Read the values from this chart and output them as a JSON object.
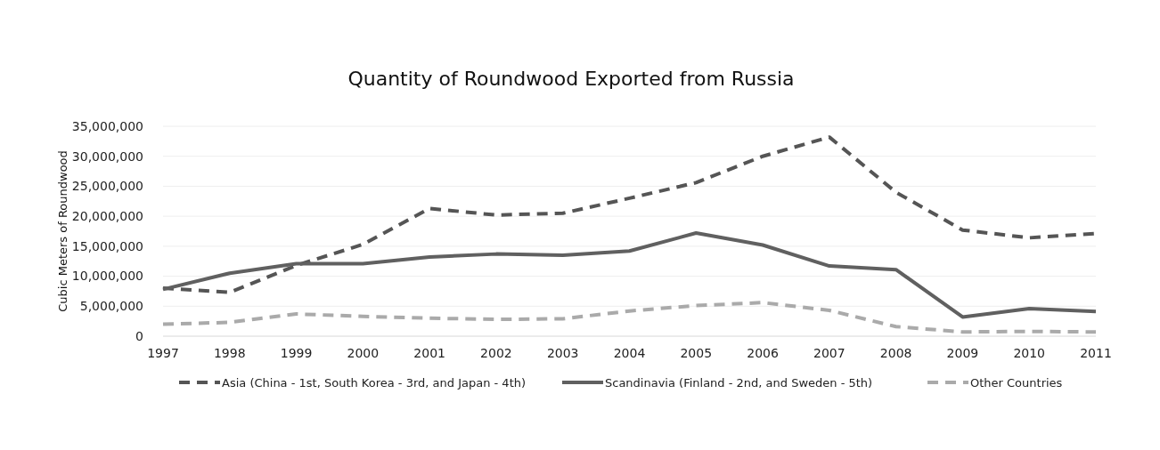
{
  "chart_data": {
    "type": "line",
    "title": "Quantity of Roundwood Exported from Russia",
    "ylabel": "Cubic Meters of Roundwood",
    "categories": [
      "1997",
      "1998",
      "1999",
      "2000",
      "2001",
      "2002",
      "2003",
      "2004",
      "2005",
      "2006",
      "2007",
      "2008",
      "2009",
      "2010",
      "2011"
    ],
    "series": [
      {
        "name": "Asia (China - 1st, South Korea - 3rd, and Japan - 4th)",
        "color": "#555555",
        "line_style": "dashed",
        "values": [
          8000000,
          7300000,
          11800000,
          15300000,
          21300000,
          20200000,
          20500000,
          23000000,
          25600000,
          30000000,
          33200000,
          24000000,
          17700000,
          16400000,
          17100000
        ]
      },
      {
        "name": "Scandinavia (Finland - 2nd,  and Sweden - 5th)",
        "color": "#606060",
        "line_style": "solid",
        "values": [
          7800000,
          10500000,
          12100000,
          12100000,
          13200000,
          13700000,
          13500000,
          14200000,
          17200000,
          15200000,
          11700000,
          11100000,
          3200000,
          4600000,
          4100000
        ]
      },
      {
        "name": "Other Countries",
        "color": "#aaaaaa",
        "line_style": "dashed",
        "values": [
          2000000,
          2300000,
          3700000,
          3300000,
          3000000,
          2800000,
          2900000,
          4200000,
          5100000,
          5600000,
          4300000,
          1600000,
          700000,
          800000,
          700000
        ]
      }
    ],
    "ylim": [
      0,
      35000000
    ],
    "yticks": [
      {
        "value": 0,
        "label": "0"
      },
      {
        "value": 5000000,
        "label": "5,000,000"
      },
      {
        "value": 10000000,
        "label": "10,000,000"
      },
      {
        "value": 15000000,
        "label": "15,000,000"
      },
      {
        "value": 20000000,
        "label": "20,000,000"
      },
      {
        "value": 25000000,
        "label": "25,000,000"
      },
      {
        "value": 30000000,
        "label": "30,000,000"
      },
      {
        "value": 35000000,
        "label": "35,000,000"
      }
    ],
    "grid": "y",
    "legend": "bottom",
    "marker": "none"
  }
}
